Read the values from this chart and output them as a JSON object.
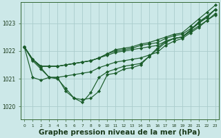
{
  "background_color": "#cce8e8",
  "grid_color": "#aacccc",
  "line_color": "#1a5c2a",
  "marker_color": "#1a5c2a",
  "xlabel": "Graphe pression niveau de la mer (hPa)",
  "xlabel_fontsize": 7.5,
  "yticks": [
    1020,
    1021,
    1022,
    1023
  ],
  "xticks": [
    0,
    1,
    2,
    3,
    4,
    5,
    6,
    7,
    8,
    9,
    10,
    11,
    12,
    13,
    14,
    15,
    16,
    17,
    18,
    19,
    20,
    21,
    22,
    23
  ],
  "ylim": [
    1019.55,
    1023.75
  ],
  "xlim": [
    -0.4,
    23.4
  ],
  "series": [
    [
      1022.15,
      1021.7,
      1021.45,
      1021.45,
      1021.45,
      1021.5,
      1021.55,
      1021.6,
      1021.65,
      1021.75,
      1021.85,
      1021.95,
      1022.0,
      1022.05,
      1022.1,
      1022.15,
      1022.2,
      1022.35,
      1022.45,
      1022.5,
      1022.7,
      1022.9,
      1023.1,
      1023.3
    ],
    [
      1022.15,
      1021.7,
      1021.45,
      1021.45,
      1021.45,
      1021.5,
      1021.55,
      1021.6,
      1021.65,
      1021.75,
      1021.9,
      1022.0,
      1022.05,
      1022.1,
      1022.2,
      1022.25,
      1022.3,
      1022.45,
      1022.55,
      1022.6,
      1022.8,
      1023.0,
      1023.25,
      1023.5
    ],
    [
      1022.15,
      1021.7,
      1021.45,
      1021.45,
      1021.45,
      1021.5,
      1021.55,
      1021.6,
      1021.65,
      1021.75,
      1021.9,
      1022.05,
      1022.1,
      1022.15,
      1022.25,
      1022.3,
      1022.4,
      1022.5,
      1022.6,
      1022.65,
      1022.9,
      1023.15,
      1023.4,
      1023.65
    ],
    [
      1022.15,
      1021.7,
      1021.4,
      1021.05,
      1021.05,
      1021.1,
      1021.15,
      1021.2,
      1021.25,
      1021.4,
      1021.5,
      1021.6,
      1021.65,
      1021.7,
      1021.75,
      1021.85,
      1021.95,
      1022.2,
      1022.35,
      1022.45,
      1022.65,
      1022.85,
      1023.1,
      1023.35
    ],
    [
      1022.15,
      1021.05,
      1020.95,
      1021.05,
      1021.05,
      1020.55,
      1020.3,
      1020.25,
      1020.3,
      1020.55,
      1021.15,
      1021.2,
      1021.35,
      1021.4,
      1021.5,
      1021.8,
      1022.1,
      1022.35,
      1022.45,
      1022.5,
      1022.75,
      1023.0,
      1023.2,
      1023.5
    ],
    [
      1022.15,
      1021.65,
      1021.35,
      1021.05,
      1021.0,
      1020.65,
      1020.3,
      1020.15,
      1020.5,
      1021.05,
      1021.25,
      1021.35,
      1021.45,
      1021.5,
      1021.55,
      1021.8,
      1022.05,
      1022.3,
      1022.45,
      1022.5,
      1022.75,
      1023.05,
      1023.25,
      1023.5
    ]
  ]
}
